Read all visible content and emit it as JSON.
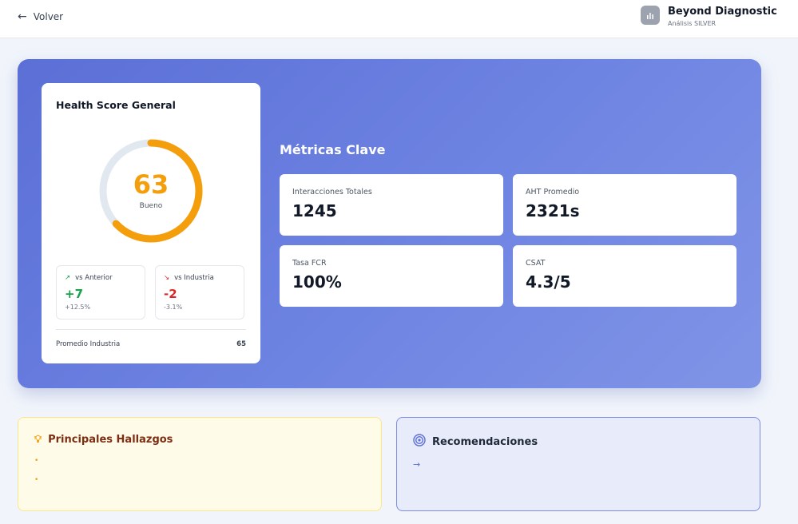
{
  "header": {
    "back_label": "Volver",
    "brand_title": "Beyond Diagnostic",
    "brand_subtitle": "Análisis SILVER",
    "logo_icon": "bar-chart-icon"
  },
  "health": {
    "title": "Health Score General",
    "score": 63,
    "score_text": "63",
    "status": "Bueno",
    "color": "#f59e0b",
    "vs_prev": {
      "label": "vs Anterior",
      "value": "+7",
      "pct": "+12.5%",
      "icon": "trending-up-icon"
    },
    "vs_ind": {
      "label": "vs Industria",
      "value": "-2",
      "pct": "-3.1%",
      "icon": "trending-down-icon"
    },
    "industry_label": "Promedio Industria",
    "industry_value": "65"
  },
  "metrics": {
    "title": "Métricas Clave",
    "items": [
      {
        "label": "Interacciones Totales",
        "value": "1245"
      },
      {
        "label": "AHT Promedio",
        "value": "2321s"
      },
      {
        "label": "Tasa FCR",
        "value": "100%"
      },
      {
        "label": "CSAT",
        "value": "4.3/5"
      }
    ]
  },
  "findings": {
    "title": "Principales Hallazgos",
    "icon": "lightbulb-icon",
    "bullets": [
      "•",
      "•"
    ]
  },
  "recs": {
    "title": "Recomendaciones",
    "icon": "target-icon",
    "arrow": "→"
  }
}
